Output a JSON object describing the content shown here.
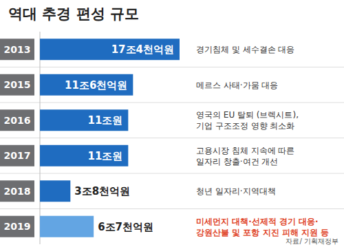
{
  "chart_data": {
    "type": "bar",
    "orientation": "horizontal",
    "title": "역대 추경 편성 규모",
    "categories": [
      "2013",
      "2015",
      "2016",
      "2017",
      "2018",
      "2019"
    ],
    "values": [
      17.4,
      11.6,
      11,
      11,
      3.8,
      6.7
    ],
    "value_labels": [
      "17조4천억원",
      "11조6천억원",
      "11조원",
      "11조원",
      "3조8천억원",
      "6조7천억원"
    ],
    "data_labels": true,
    "colors": [
      "#1f6cc0",
      "#1f6cc0",
      "#1f6cc0",
      "#1f6cc0",
      "#1f6cc0",
      "#63a5e3"
    ],
    "xlim": [
      0,
      18
    ],
    "tick_labels": false,
    "grid": false,
    "annotations": [
      [
        "경기침체 및 세수결손 대응"
      ],
      [
        "메르스 사태·가뭄 대응"
      ],
      [
        "영국의 EU 탈퇴 (브렉시트),",
        "기업 구조조정 영향 최소화"
      ],
      [
        "고용시장 침체 지속에 따른",
        "일자리 창출·여건 개선"
      ],
      [
        "청년 일자리·지역대책"
      ],
      [
        "미세먼지 대책·선제적 경기 대응·",
        "강원산불 및 포항 지진 피해 지원 등"
      ]
    ],
    "source": "자료/ 기획재정부"
  }
}
